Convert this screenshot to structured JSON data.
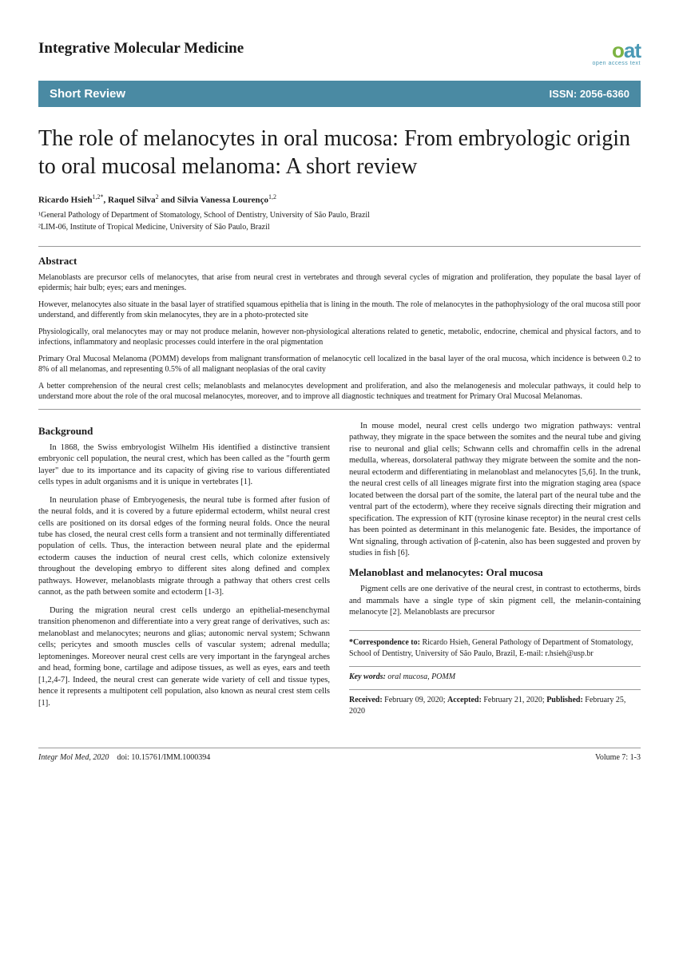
{
  "journal": {
    "name": "Integrative Molecular Medicine",
    "logo_main": "oat",
    "logo_sub": "open access text"
  },
  "banner": {
    "type": "Short Review",
    "issn_label": "ISSN: 2056-6360"
  },
  "title": "The role of melanocytes in oral mucosa: From embryologic origin to oral mucosal melanoma: A short review",
  "authors_html": "Ricardo Hsieh<sup>1,2*</sup>, Raquel Silva<sup>2</sup> and Silvia Vanessa Lourenço<sup>1,2</sup>",
  "affiliations": [
    "¹General Pathology of Department of Stomatology, School of Dentistry, University of São Paulo, Brazil",
    "²LIM-06, Institute of Tropical Medicine, University of São Paulo, Brazil"
  ],
  "abstract": {
    "heading": "Abstract",
    "paragraphs": [
      "Melanoblasts are precursor cells of melanocytes, that arise from neural crest in vertebrates and through several cycles of migration and proliferation, they populate the basal layer of epidermis; hair bulb; eyes; ears and meninges.",
      "However, melanocytes also situate in the basal layer of stratified squamous epithelia that is lining in the mouth. The role of melanocytes in the pathophysiology of the oral mucosa still poor understand, and differently from skin melanocytes, they are in a photo-protected site",
      "Physiologically, oral melanocytes may or may not produce melanin, however non-physiological alterations related to genetic, metabolic, endocrine, chemical and physical factors, and to infections, inflammatory and neoplasic processes could interfere in the oral pigmentation",
      "Primary Oral Mucosal Melanoma (POMM) develops from malignant transformation of melanocytic cell localized in the basal layer of the oral mucosa, which incidence is between 0.2 to 8% of all melanomas, and representing 0.5% of all malignant neoplasias of the oral cavity",
      "A better comprehension of the neural crest cells; melanoblasts and melanocytes development and proliferation, and also the melanogenesis and molecular pathways, it could help to understand more about the role of the oral mucosal melanocytes, moreover, and to improve all diagnostic techniques and treatment for Primary Oral Mucosal Melanomas."
    ]
  },
  "body": {
    "left": {
      "heading": "Background",
      "paragraphs": [
        "In 1868, the Swiss embryologist Wilhelm His identified a distinctive transient embryonic cell population, the neural crest, which has been called as the \"fourth germ layer\" due to its importance and its capacity of giving rise to various differentiated cells types in adult organisms and it is unique in vertebrates [1].",
        "In neurulation phase of Embryogenesis, the neural tube is formed after fusion of the neural folds, and it is covered by a future epidermal ectoderm, whilst neural crest cells are positioned on its dorsal edges of the forming neural folds. Once the neural tube has closed, the neural crest cells form a transient and not terminally differentiated population of cells. Thus, the interaction between neural plate and the epidermal ectoderm causes the induction of neural crest cells, which colonize extensively throughout the developing embryo to different sites along defined and complex pathways. However, melanoblasts migrate through a pathway that others crest cells cannot, as the path between somite and ectoderm [1-3].",
        "During the migration neural crest cells undergo an epithelial-mesenchymal transition phenomenon and differentiate into a very great range of derivatives, such as: melanoblast and melanocytes; neurons and glias; autonomic nerval system; Schwann cells; pericytes and smooth muscles cells of vascular system; adrenal medulla; leptomeninges. Moreover neural crest cells are very important in the faryngeal arches and head, forming bone, cartilage and adipose tissues, as well as eyes, ears and teeth [1,2,4-7]. Indeed, the neural crest can generate wide variety of cell and tissue types, hence it represents a multipotent cell population, also known as neural crest stem cells [1]."
      ]
    },
    "right": {
      "paragraphs": [
        "In mouse model, neural crest cells undergo two migration pathways: ventral pathway, they migrate in the space between the somites and the neural tube and giving rise to neuronal and glial cells; Schwann cells and chromaffin cells in the adrenal medulla, whereas, dorsolateral pathway they migrate between the somite and the non-neural ectoderm and differentiating in melanoblast and melanocytes [5,6]. In the trunk, the neural crest cells of all lineages migrate first into the migration staging area (space located between the dorsal part of the somite, the lateral part of the neural tube and the ventral part of the ectoderm), where they receive signals directing their migration and specification. The expression of KIT (tyrosine kinase receptor) in the neural crest cells has been pointed as determinant in this melanogenic fate. Besides, the importance of Wnt signaling, through activation of β-catenin, also has been suggested and proven by studies in fish [6]."
      ],
      "heading2": "Melanoblast and melanocytes: Oral mucosa",
      "paragraphs2": [
        "Pigment cells are one derivative of the neural crest, in contrast to ectotherms, birds and mammals have a single type of skin pigment cell, the melanin-containing melanocyte [2]. Melanoblasts are precursor"
      ]
    }
  },
  "correspondence": {
    "label": "*Correspondence to:",
    "text": "Ricardo Hsieh, General Pathology of Department of Stomatology, School of Dentistry, University of São Paulo, Brazil, E-mail: r.hsieh@usp.br"
  },
  "keywords": {
    "label": "Key words:",
    "text": "oral mucosa, POMM"
  },
  "dates": {
    "received_label": "Received:",
    "received": "February 09, 2020;",
    "accepted_label": "Accepted:",
    "accepted": "February 21, 2020;",
    "published_label": "Published:",
    "published": "February 25, 2020"
  },
  "footer": {
    "journal_short": "Integr Mol Med,",
    "year": "2020",
    "doi": "doi: 10.15761/IMM.1000394",
    "volume": "Volume 7: 1-3"
  }
}
